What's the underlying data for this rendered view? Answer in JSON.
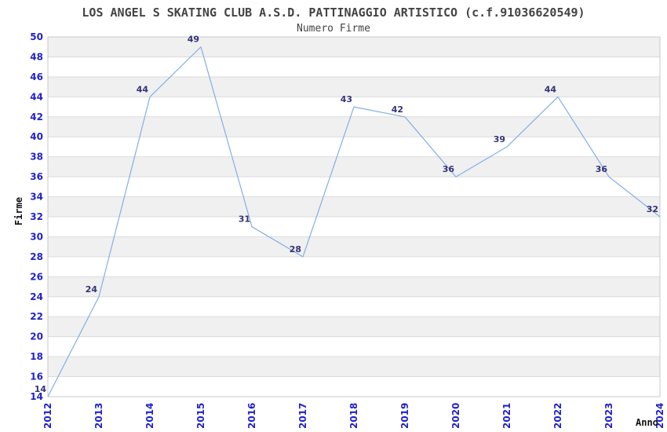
{
  "page": {
    "background": "#ffffff"
  },
  "chart_data": {
    "type": "line",
    "title": "LOS ANGEL S SKATING CLUB A.S.D. PATTINAGGIO ARTISTICO (c.f.91036620549)",
    "subtitle": "Numero Firme",
    "xlabel": "Anno",
    "ylabel": "Firme",
    "categories": [
      "2012",
      "2013",
      "2014",
      "2015",
      "2016",
      "2017",
      "2018",
      "2019",
      "2020",
      "2021",
      "2022",
      "2023",
      "2024"
    ],
    "values": [
      14,
      24,
      44,
      49,
      31,
      28,
      43,
      42,
      36,
      39,
      44,
      36,
      32
    ],
    "ylim": [
      14,
      50
    ],
    "ytick_step": 2,
    "grid": "horizontal",
    "legend": "none",
    "colors": {
      "line": "#82AFE3",
      "tick_label": "#2222CC",
      "value_label": "#333377",
      "band_dark": "#F0F0F0",
      "band_light": "#FFFFFF",
      "gridline": "#DCDCDC",
      "plot_border": "#C9C9C9",
      "title_text": "#444444",
      "axis_title_text": "#111111"
    }
  }
}
